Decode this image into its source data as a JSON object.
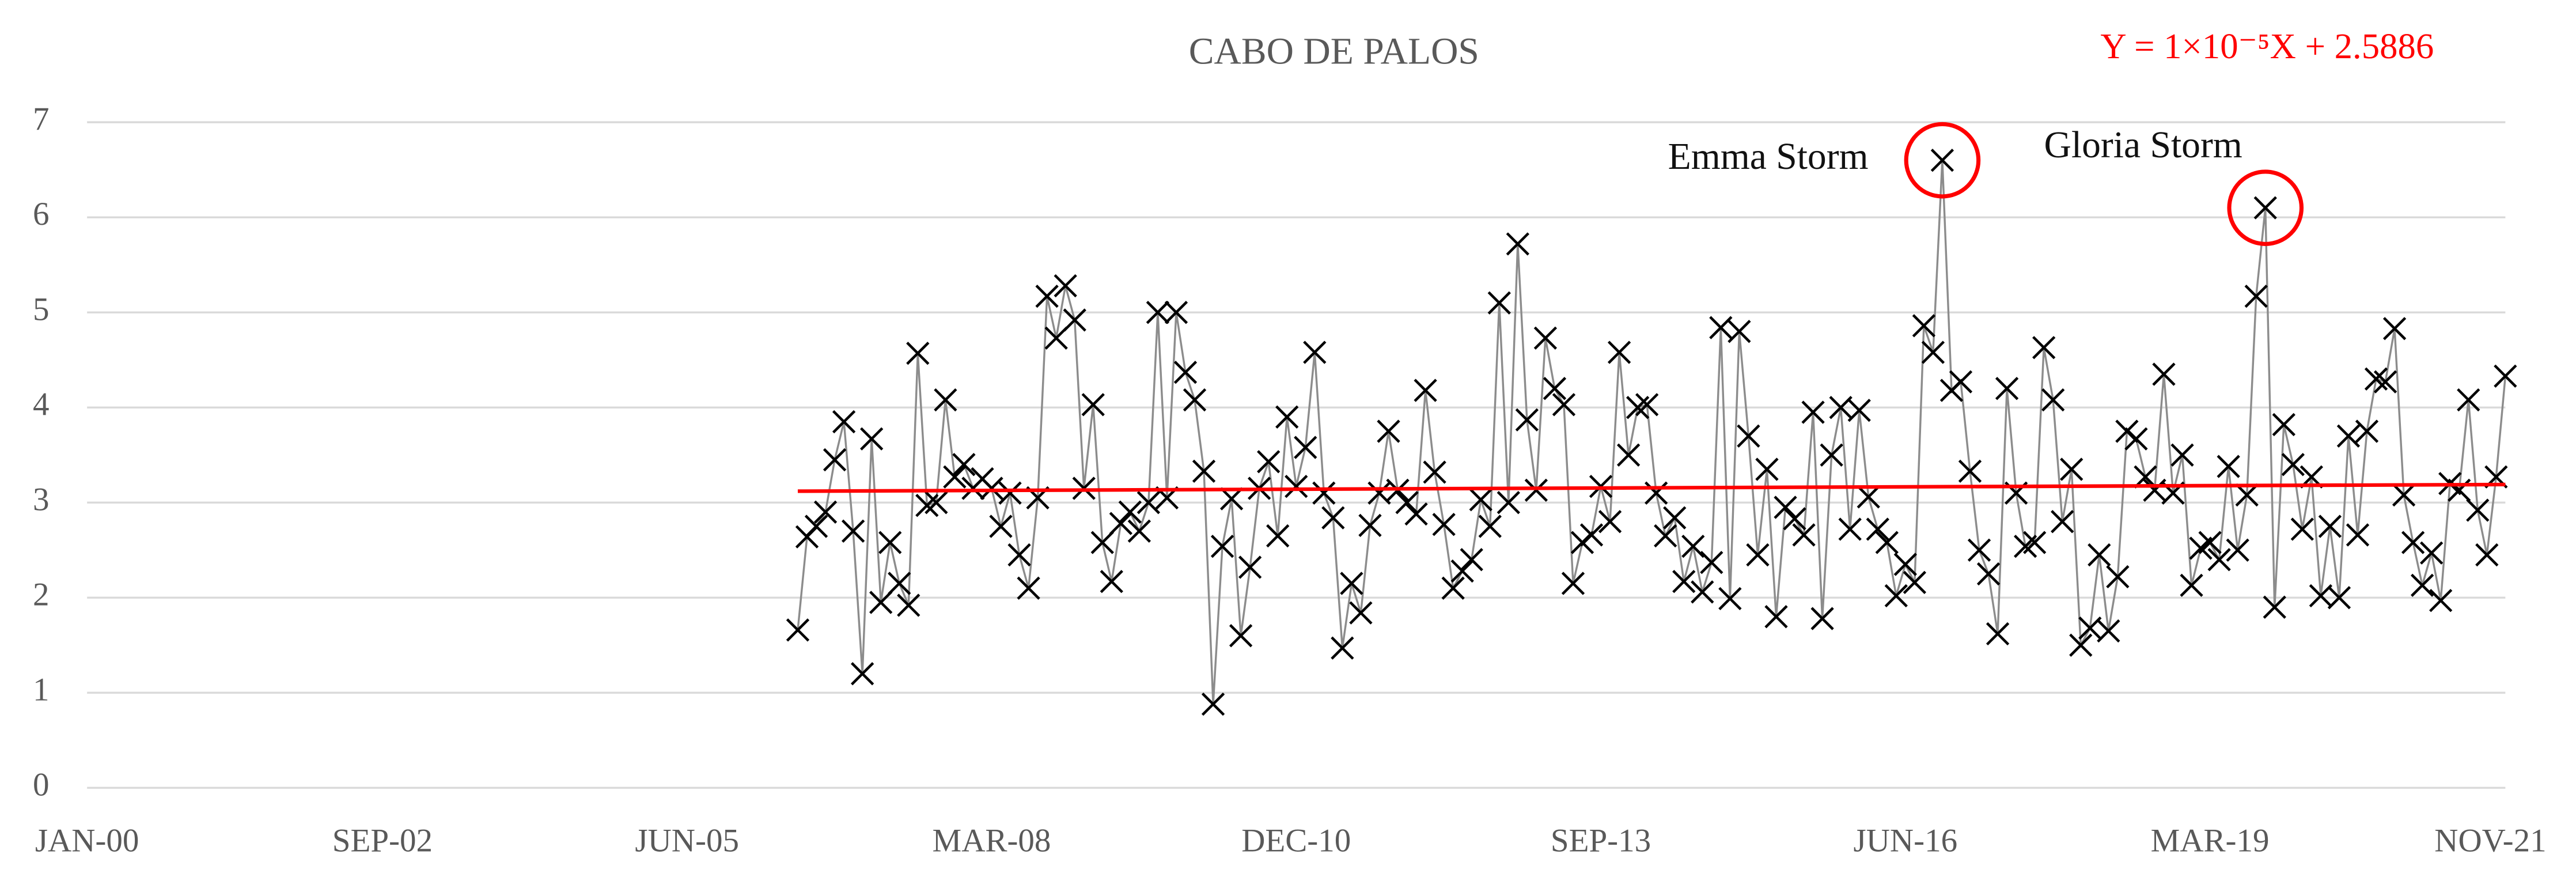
{
  "chart_data": {
    "type": "line",
    "title": "CABO DE PALOS",
    "marker": "x",
    "color": "#000000",
    "line_color": "#8c8c8c",
    "grid": true,
    "x": [
      "2006-06",
      "2006-07",
      "2006-08",
      "2006-09",
      "2006-10",
      "2006-11",
      "2006-12",
      "2007-01",
      "2007-02",
      "2007-03",
      "2007-04",
      "2007-05",
      "2007-06",
      "2007-07",
      "2007-08",
      "2007-09",
      "2007-10",
      "2007-11",
      "2007-12",
      "2008-01",
      "2008-02",
      "2008-03",
      "2008-04",
      "2008-05",
      "2008-06",
      "2008-07",
      "2008-08",
      "2008-09",
      "2008-10",
      "2008-11",
      "2008-12",
      "2009-01",
      "2009-02",
      "2009-03",
      "2009-04",
      "2009-05",
      "2009-06",
      "2009-07",
      "2009-08",
      "2009-09",
      "2009-10",
      "2009-11",
      "2009-12",
      "2010-01",
      "2010-02",
      "2010-03",
      "2010-04",
      "2010-05",
      "2010-06",
      "2010-07",
      "2010-08",
      "2010-09",
      "2010-10",
      "2010-11",
      "2010-12",
      "2011-01",
      "2011-02",
      "2011-03",
      "2011-04",
      "2011-05",
      "2011-06",
      "2011-07",
      "2011-08",
      "2011-09",
      "2011-10",
      "2011-11",
      "2011-12",
      "2012-01",
      "2012-02",
      "2012-03",
      "2012-04",
      "2012-05",
      "2012-06",
      "2012-07",
      "2012-08",
      "2012-09",
      "2012-10",
      "2012-11",
      "2012-12",
      "2013-01",
      "2013-02",
      "2013-03",
      "2013-04",
      "2013-05",
      "2013-06",
      "2013-07",
      "2013-08",
      "2013-09",
      "2013-10",
      "2013-11",
      "2013-12",
      "2014-01",
      "2014-02",
      "2014-03",
      "2014-04",
      "2014-05",
      "2014-06",
      "2014-07",
      "2014-08",
      "2014-09",
      "2014-10",
      "2014-11",
      "2014-12",
      "2015-01",
      "2015-02",
      "2015-03",
      "2015-04",
      "2015-05",
      "2015-06",
      "2015-07",
      "2015-08",
      "2015-09",
      "2015-10",
      "2015-11",
      "2015-12",
      "2016-01",
      "2016-02",
      "2016-03",
      "2016-04",
      "2016-05",
      "2016-06",
      "2016-07",
      "2016-08",
      "2016-09",
      "2016-10",
      "2016-11",
      "2016-12",
      "2017-01",
      "2017-02",
      "2017-03",
      "2017-04",
      "2017-05",
      "2017-06",
      "2017-07",
      "2017-08",
      "2017-09",
      "2017-10",
      "2017-11",
      "2017-12",
      "2018-01",
      "2018-02",
      "2018-03",
      "2018-04",
      "2018-05",
      "2018-06",
      "2018-07",
      "2018-08",
      "2018-09",
      "2018-10",
      "2018-11",
      "2018-12",
      "2019-01",
      "2019-02",
      "2019-03",
      "2019-04",
      "2019-05",
      "2019-06",
      "2019-07",
      "2019-08",
      "2019-09",
      "2019-10",
      "2019-11",
      "2019-12",
      "2020-01",
      "2020-02",
      "2020-03",
      "2020-04",
      "2020-05",
      "2020-06",
      "2020-07",
      "2020-08",
      "2020-09",
      "2020-10",
      "2020-11",
      "2020-12",
      "2021-01",
      "2021-02",
      "2021-03",
      "2021-04",
      "2021-05",
      "2021-06",
      "2021-07",
      "2021-08",
      "2021-09",
      "2021-10",
      "2021-11"
    ],
    "values": [
      1.66,
      2.64,
      2.75,
      2.9,
      3.45,
      3.85,
      2.7,
      1.2,
      3.67,
      1.95,
      2.58,
      2.15,
      1.92,
      4.57,
      2.97,
      3.0,
      4.08,
      3.27,
      3.4,
      3.15,
      3.25,
      3.15,
      2.75,
      3.1,
      2.45,
      2.1,
      3.05,
      5.17,
      4.73,
      5.28,
      4.92,
      3.15,
      4.03,
      2.58,
      2.17,
      2.78,
      2.9,
      2.7,
      3.0,
      5.0,
      3.05,
      5.0,
      4.37,
      4.08,
      3.33,
      0.88,
      2.54,
      3.04,
      1.6,
      2.32,
      3.15,
      3.43,
      2.65,
      3.9,
      3.17,
      3.58,
      4.58,
      3.1,
      2.84,
      1.47,
      2.15,
      1.84,
      2.76,
      3.1,
      3.75,
      3.13,
      3.0,
      2.88,
      4.18,
      3.32,
      2.77,
      2.1,
      2.28,
      2.4,
      3.03,
      2.75,
      5.1,
      3.0,
      5.72,
      3.87,
      3.13,
      4.73,
      4.2,
      4.03,
      2.15,
      2.58,
      2.66,
      3.17,
      2.8,
      4.58,
      3.5,
      4.0,
      4.03,
      3.1,
      2.65,
      2.84,
      2.17,
      2.54,
      2.06,
      2.37,
      4.84,
      1.99,
      4.8,
      3.7,
      2.45,
      3.35,
      1.8,
      2.95,
      2.83,
      2.66,
      3.95,
      1.78,
      3.5,
      4.0,
      2.72,
      3.97,
      3.06,
      2.72,
      2.58,
      2.02,
      2.35,
      2.16,
      4.86,
      4.58,
      6.6,
      4.18,
      4.27,
      3.33,
      2.5,
      2.25,
      1.62,
      4.2,
      3.1,
      2.54,
      2.58,
      4.63,
      4.08,
      2.8,
      3.35,
      1.5,
      1.68,
      2.45,
      1.65,
      2.22,
      3.75,
      3.67,
      3.27,
      3.13,
      4.35,
      3.1,
      3.5,
      2.13,
      2.52,
      2.58,
      2.4,
      3.38,
      2.5,
      3.08,
      5.17,
      6.1,
      1.9,
      3.82,
      3.4,
      2.72,
      3.27,
      2.02,
      2.75,
      2.0,
      3.7,
      2.66,
      3.75,
      4.3,
      4.27,
      4.83,
      3.08,
      2.58,
      2.13,
      2.47,
      1.97,
      3.2,
      3.13,
      4.08,
      2.92,
      2.45,
      3.27,
      4.33
    ],
    "trendline": {
      "label": "Y = 1×10⁻⁵X + 2.5886",
      "color": "#ff0000",
      "x": [
        "2006-06",
        "2021-11"
      ],
      "values": [
        3.12,
        3.19
      ]
    },
    "annotations": [
      {
        "text": "Emma Storm",
        "x": "2016-10"
      },
      {
        "text": "Gloria Storm",
        "x": "2019-09"
      }
    ],
    "highlight_color": "#ff0000",
    "xlim": [
      "2000-01",
      "2021-11"
    ],
    "xticks": [
      {
        "value": "2000-01",
        "label": "JAN-00"
      },
      {
        "value": "2002-09",
        "label": "SEP-02"
      },
      {
        "value": "2005-06",
        "label": "JUN-05"
      },
      {
        "value": "2008-03",
        "label": "MAR-08"
      },
      {
        "value": "2010-12",
        "label": "DEC-10"
      },
      {
        "value": "2013-09",
        "label": "SEP-13"
      },
      {
        "value": "2016-06",
        "label": "JUN-16"
      },
      {
        "value": "2019-03",
        "label": "MAR-19"
      },
      {
        "value": "2021-11",
        "label": "NOV-21"
      }
    ],
    "ylim": [
      0,
      7
    ],
    "yticks": [
      0,
      1,
      2,
      3,
      4,
      5,
      6,
      7
    ]
  }
}
